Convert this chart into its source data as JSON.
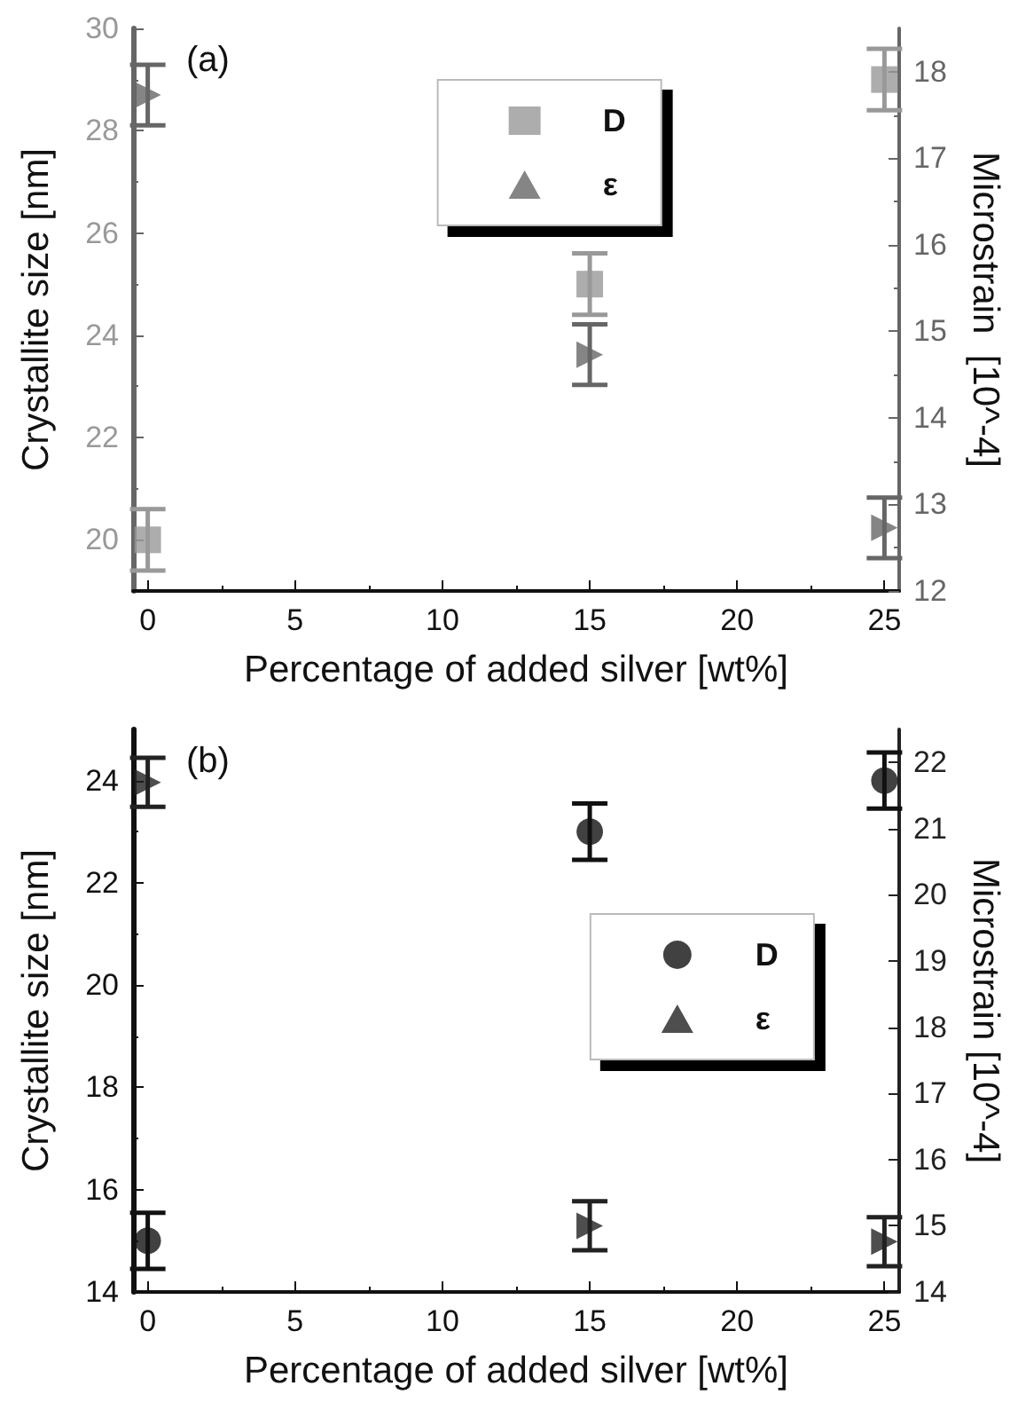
{
  "chart_data": [
    {
      "type": "scatter",
      "xlabel": "Percentage of added silver [wt%]",
      "ylabel": "Crystallite size [nm]",
      "y2label": "Microstrain  [10^-4]",
      "annotations": [
        "(a)"
      ],
      "x": [
        0,
        15,
        25
      ],
      "xlim": [
        -0.5,
        25.5
      ],
      "xticks": [
        0,
        5,
        10,
        15,
        20,
        25
      ],
      "ylim": [
        19,
        30
      ],
      "yticks": [
        20,
        22,
        24,
        26,
        28,
        30
      ],
      "y2lim": [
        12,
        18.5
      ],
      "y2ticks": [
        12,
        13,
        14,
        15,
        16,
        17,
        18
      ],
      "grid": false,
      "legend": "top",
      "series": [
        {
          "name": "D",
          "color": "#999999",
          "marker": "square",
          "values": [
            20,
            25,
            29
          ],
          "errors": [
            0.6,
            0.6,
            0.6
          ]
        },
        {
          "name": "ε",
          "color": "#666666",
          "marker": "triangle",
          "axis": "y2",
          "values": [
            17.73,
            14.73,
            12.73
          ],
          "errors": [
            0.35,
            0.35,
            0.35
          ]
        }
      ]
    },
    {
      "type": "scatter",
      "xlabel": "Percentage of added silver [wt%]",
      "ylabel": "Crystallite size [nm]",
      "y2label": "Microstrain [10^-4]",
      "annotations": [
        "(b)"
      ],
      "x": [
        0,
        15,
        25
      ],
      "xlim": [
        -0.5,
        25.5
      ],
      "xticks": [
        0,
        5,
        10,
        15,
        20,
        25
      ],
      "ylim": [
        14,
        25
      ],
      "yticks": [
        14,
        16,
        18,
        20,
        22,
        24
      ],
      "y2lim": [
        14,
        22.5
      ],
      "y2ticks": [
        14,
        15,
        16,
        17,
        18,
        19,
        20,
        21,
        22
      ],
      "grid": false,
      "legend": "right",
      "series": [
        {
          "name": "D",
          "color": "#111111",
          "marker": "circle",
          "values": [
            15,
            23,
            24
          ],
          "errors": [
            0.55,
            0.55,
            0.55
          ]
        },
        {
          "name": "ε",
          "color": "#222222",
          "marker": "triangle",
          "axis": "y2",
          "values": [
            21.7,
            15.0,
            14.76
          ],
          "errors": [
            0.37,
            0.37,
            0.37
          ]
        }
      ]
    }
  ]
}
